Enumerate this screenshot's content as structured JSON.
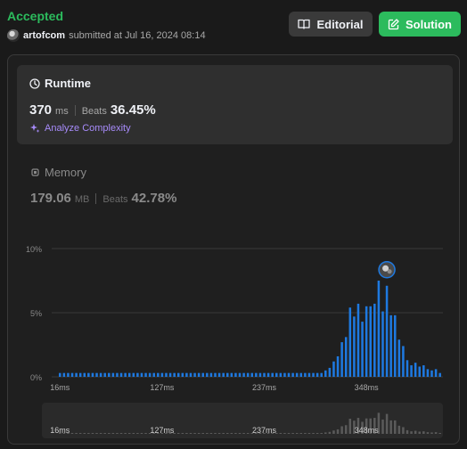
{
  "status": "Accepted",
  "submitter": {
    "username": "artofcom",
    "text": "submitted at Jul 16, 2024 08:14"
  },
  "buttons": {
    "editorial": "Editorial",
    "solution": "Solution"
  },
  "runtime": {
    "title": "Runtime",
    "value": "370",
    "unit": "ms",
    "beats_label": "Beats",
    "beats": "36.45%",
    "analyze": "Analyze Complexity"
  },
  "memory": {
    "title": "Memory",
    "value": "179.06",
    "unit": "MB",
    "beats_label": "Beats",
    "beats": "42.78%"
  },
  "colors": {
    "accent_green": "#2cbb5d",
    "bar_blue": "#1e79e0",
    "analyze_purple": "#a78bfa"
  },
  "chart_data": {
    "type": "bar",
    "y_ticks": [
      "10%",
      "5%",
      "0%"
    ],
    "ylim": [
      0,
      10
    ],
    "x_ticks": [
      "16ms",
      "127ms",
      "237ms",
      "348ms"
    ],
    "values": [
      0.3,
      0.3,
      0.3,
      0.3,
      0.3,
      0.3,
      0.3,
      0.3,
      0.3,
      0.3,
      0.3,
      0.3,
      0.3,
      0.3,
      0.3,
      0.3,
      0.3,
      0.3,
      0.3,
      0.3,
      0.3,
      0.3,
      0.3,
      0.3,
      0.3,
      0.3,
      0.3,
      0.3,
      0.3,
      0.3,
      0.3,
      0.3,
      0.3,
      0.3,
      0.3,
      0.3,
      0.3,
      0.3,
      0.3,
      0.3,
      0.3,
      0.3,
      0.3,
      0.3,
      0.3,
      0.3,
      0.3,
      0.3,
      0.3,
      0.3,
      0.3,
      0.3,
      0.3,
      0.3,
      0.3,
      0.3,
      0.3,
      0.3,
      0.3,
      0.3,
      0.3,
      0.3,
      0.3,
      0.3,
      0.3,
      0.5,
      0.7,
      1.2,
      1.6,
      2.7,
      3.1,
      5.4,
      4.7,
      5.7,
      4.3,
      5.5,
      5.5,
      5.7,
      7.5,
      5.1,
      7.1,
      4.8,
      4.8,
      2.9,
      2.4,
      1.3,
      0.9,
      1.1,
      0.8,
      0.9,
      0.6,
      0.5,
      0.6,
      0.3
    ],
    "highlight_index": 80
  }
}
